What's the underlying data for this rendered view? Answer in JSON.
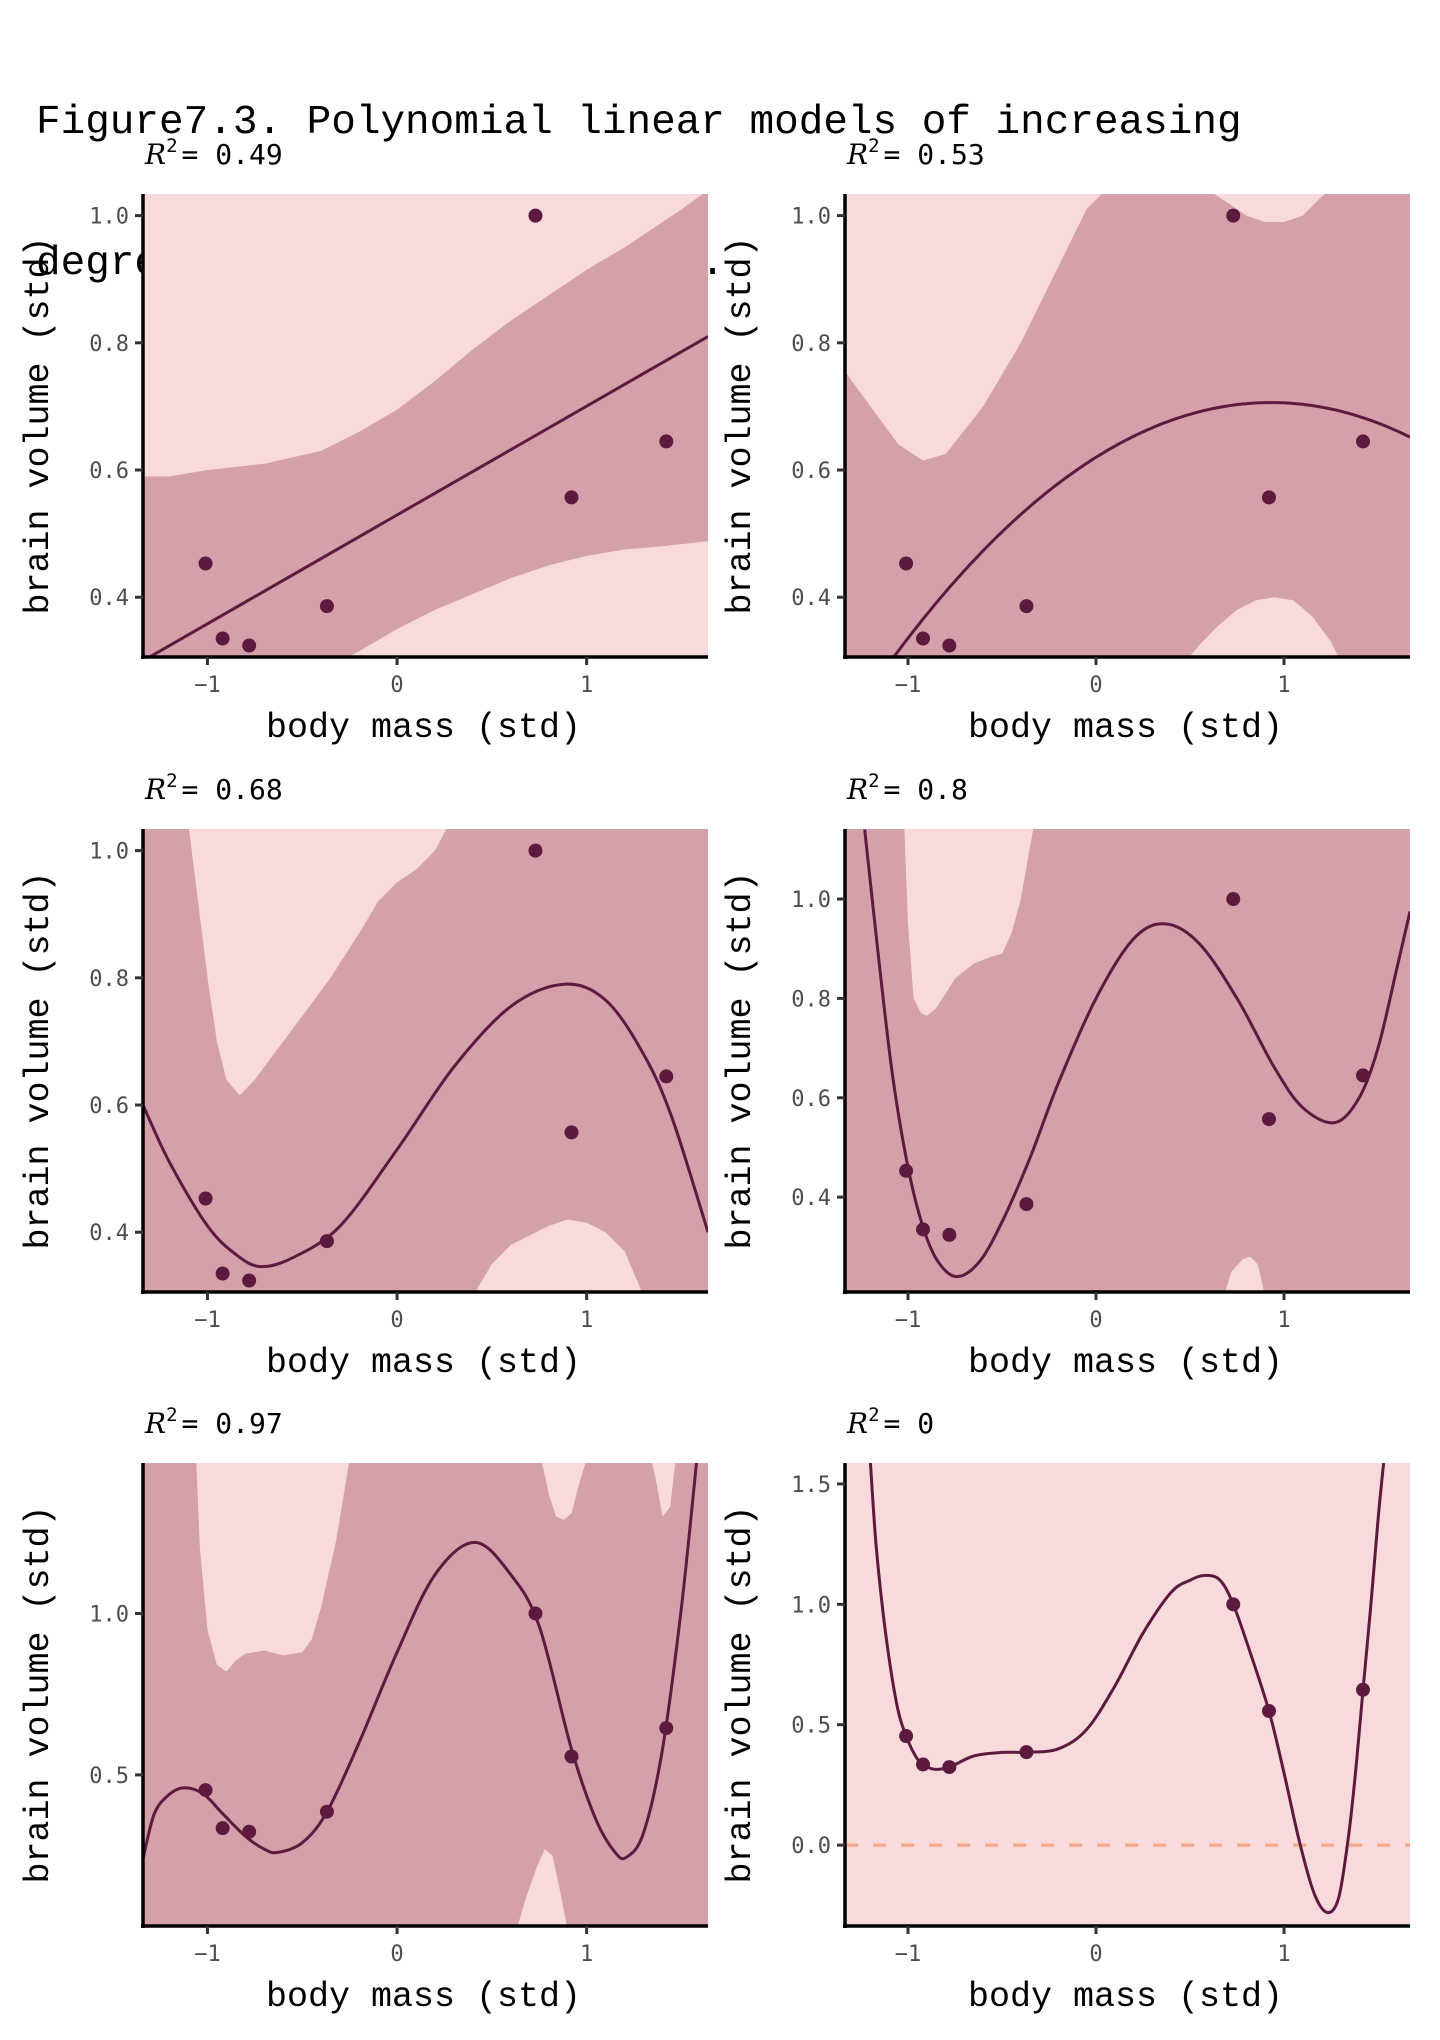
{
  "figure": {
    "title_line1": "Figure7.3. Polynomial linear models of increasing",
    "title_line2": "degree for the hominin data."
  },
  "colors": {
    "point": "#5e1a3e",
    "line": "#5e1a3e",
    "band_outer": "#f8dadc",
    "band_inner": "#d4a0aa",
    "reference_line": "#f4a582",
    "axis": "#000000"
  },
  "chart_data": [
    {
      "type": "line",
      "panel": "top-left",
      "title": "R² = 0.49",
      "r2_label": "0.49",
      "degree": 1,
      "xlabel": "body mass (std)",
      "ylabel": "brain volume (std)",
      "xlim": [
        -1.34,
        1.64
      ],
      "ylim": [
        0.306,
        1.034
      ],
      "xticks": [
        -1,
        0,
        1
      ],
      "xtick_labels": [
        "−1",
        "0",
        "1"
      ],
      "yticks": [
        0.4,
        0.6,
        0.8,
        1.0
      ],
      "ytick_labels": [
        "0.4",
        "0.6",
        "0.8",
        "1.0"
      ],
      "grid": false,
      "points": {
        "x": [
          -0.78,
          -0.92,
          -1.01,
          -0.37,
          0.92,
          1.42,
          0.73
        ],
        "y": [
          0.324,
          0.335,
          0.453,
          0.386,
          0.557,
          0.645,
          1.0
        ]
      },
      "fit": {
        "x": [
          -1.34,
          1.64
        ],
        "y": [
          0.3,
          0.81
        ]
      },
      "band_upper": {
        "x": [
          -1.34,
          -1.2,
          -1.0,
          -0.7,
          -0.4,
          -0.2,
          0.0,
          0.2,
          0.4,
          0.6,
          0.8,
          1.0,
          1.2,
          1.4,
          1.5,
          1.64
        ],
        "y": [
          0.59,
          0.59,
          0.6,
          0.61,
          0.63,
          0.66,
          0.695,
          0.74,
          0.79,
          0.835,
          0.875,
          0.915,
          0.95,
          0.99,
          1.01,
          1.04
        ]
      },
      "band_lower": {
        "x": [
          -1.34,
          -0.3,
          -0.2,
          0.0,
          0.2,
          0.4,
          0.6,
          0.8,
          1.0,
          1.2,
          1.4,
          1.64
        ],
        "y": [
          0.3,
          0.3,
          0.315,
          0.35,
          0.38,
          0.405,
          0.43,
          0.45,
          0.465,
          0.475,
          0.48,
          0.488
        ]
      }
    },
    {
      "type": "line",
      "panel": "top-right",
      "title": "R² = 0.53",
      "r2_label": "0.53",
      "degree": 2,
      "xlabel": "body mass (std)",
      "ylabel": "brain volume (std)",
      "xlim": [
        -1.335,
        1.67
      ],
      "ylim": [
        0.306,
        1.034
      ],
      "xticks": [
        -1,
        0,
        1
      ],
      "xtick_labels": [
        "−1",
        "0",
        "1"
      ],
      "yticks": [
        0.4,
        0.6,
        0.8,
        1.0
      ],
      "ytick_labels": [
        "0.4",
        "0.6",
        "0.8",
        "1.0"
      ],
      "grid": false,
      "points": {
        "x": [
          -0.78,
          -0.92,
          -1.01,
          -0.37,
          0.92,
          1.42,
          0.73
        ],
        "y": [
          0.324,
          0.335,
          0.453,
          0.386,
          0.557,
          0.645,
          1.0
        ]
      },
      "fit_poly": [
        0.62,
        0.185,
        -0.0994
      ],
      "band_upper": {
        "x": [
          -1.335,
          -1.2,
          -1.05,
          -0.92,
          -0.8,
          -0.6,
          -0.4,
          -0.2,
          -0.05,
          0.05,
          0.6,
          0.7,
          0.8,
          0.9,
          1.0,
          1.1,
          1.2,
          1.25,
          1.67
        ],
        "y": [
          0.755,
          0.7,
          0.64,
          0.615,
          0.625,
          0.7,
          0.8,
          0.92,
          1.01,
          1.04,
          1.04,
          1.02,
          1.0,
          0.99,
          0.99,
          1.0,
          1.03,
          1.04,
          1.04
        ]
      },
      "band_lower": {
        "x": [
          -1.335,
          0.48,
          0.55,
          0.65,
          0.75,
          0.85,
          0.95,
          1.05,
          1.15,
          1.25,
          1.3,
          1.67
        ],
        "y": [
          0.3,
          0.3,
          0.325,
          0.355,
          0.38,
          0.395,
          0.4,
          0.395,
          0.37,
          0.33,
          0.3,
          0.3
        ]
      }
    },
    {
      "type": "line",
      "panel": "middle-left",
      "title": "R² = 0.68",
      "r2_label": "0.68",
      "degree": 3,
      "xlabel": "body mass (std)",
      "ylabel": "brain volume (std)",
      "xlim": [
        -1.34,
        1.64
      ],
      "ylim": [
        0.306,
        1.034
      ],
      "xticks": [
        -1,
        0,
        1
      ],
      "xtick_labels": [
        "−1",
        "0",
        "1"
      ],
      "yticks": [
        0.4,
        0.6,
        0.8,
        1.0
      ],
      "ytick_labels": [
        "0.4",
        "0.6",
        "0.8",
        "1.0"
      ],
      "grid": false,
      "points": {
        "x": [
          -0.78,
          -0.92,
          -1.01,
          -0.37,
          0.92,
          1.42,
          0.73
        ],
        "y": [
          0.324,
          0.335,
          0.453,
          0.386,
          0.557,
          0.645,
          1.0
        ]
      },
      "fit": {
        "x": [
          -1.34,
          -1.2,
          -1.0,
          -0.85,
          -0.72,
          -0.55,
          -0.3,
          0.0,
          0.3,
          0.6,
          0.88,
          1.1,
          1.3,
          1.45,
          1.64
        ],
        "y": [
          0.6,
          0.51,
          0.41,
          0.365,
          0.346,
          0.36,
          0.41,
          0.53,
          0.66,
          0.755,
          0.79,
          0.765,
          0.68,
          0.58,
          0.4
        ]
      },
      "band_upper": {
        "x": [
          -1.34,
          -1.1,
          -1.05,
          -1.0,
          -0.95,
          -0.9,
          -0.83,
          -0.75,
          -0.65,
          -0.5,
          -0.35,
          -0.2,
          -0.1,
          0.0,
          0.1,
          0.2,
          0.27,
          1.64
        ],
        "y": [
          1.04,
          1.04,
          0.92,
          0.8,
          0.7,
          0.64,
          0.615,
          0.64,
          0.68,
          0.74,
          0.8,
          0.87,
          0.92,
          0.95,
          0.97,
          1.0,
          1.04,
          1.04
        ]
      },
      "band_lower": {
        "x": [
          -1.34,
          0.4,
          0.5,
          0.6,
          0.7,
          0.8,
          0.9,
          1.0,
          1.1,
          1.2,
          1.3,
          1.64
        ],
        "y": [
          0.3,
          0.3,
          0.35,
          0.38,
          0.395,
          0.41,
          0.42,
          0.415,
          0.4,
          0.37,
          0.3,
          0.3
        ]
      }
    },
    {
      "type": "line",
      "panel": "middle-right",
      "title": "R² = 0.8",
      "r2_label": "0.8",
      "degree": 4,
      "xlabel": "body mass (std)",
      "ylabel": "brain volume (std)",
      "xlim": [
        -1.335,
        1.67
      ],
      "ylim": [
        0.209,
        1.141
      ],
      "xticks": [
        -1,
        0,
        1
      ],
      "xtick_labels": [
        "−1",
        "0",
        "1"
      ],
      "yticks": [
        0.4,
        0.6,
        0.8,
        1.0
      ],
      "ytick_labels": [
        "0.4",
        "0.6",
        "0.8",
        "1.0"
      ],
      "grid": false,
      "points": {
        "x": [
          -0.78,
          -0.92,
          -1.01,
          -0.37,
          0.92,
          1.42,
          0.73
        ],
        "y": [
          0.324,
          0.335,
          0.453,
          0.386,
          0.557,
          0.645,
          1.0
        ]
      },
      "fit": {
        "x": [
          -1.23,
          -1.15,
          -1.08,
          -1.0,
          -0.92,
          -0.84,
          -0.74,
          -0.62,
          -0.5,
          -0.35,
          -0.2,
          0.0,
          0.2,
          0.37,
          0.55,
          0.75,
          0.95,
          1.1,
          1.27,
          1.4,
          1.5,
          1.6,
          1.67
        ],
        "y": [
          1.14,
          0.86,
          0.64,
          0.46,
          0.34,
          0.27,
          0.24,
          0.27,
          0.35,
          0.48,
          0.63,
          0.8,
          0.92,
          0.95,
          0.91,
          0.8,
          0.66,
          0.58,
          0.55,
          0.6,
          0.7,
          0.86,
          0.975
        ]
      },
      "band_upper": {
        "x": [
          -1.335,
          -1.02,
          -1.0,
          -0.97,
          -0.93,
          -0.9,
          -0.85,
          -0.75,
          -0.65,
          -0.55,
          -0.5,
          -0.45,
          -0.4,
          -0.33,
          1.67
        ],
        "y": [
          1.15,
          1.15,
          0.95,
          0.8,
          0.77,
          0.765,
          0.78,
          0.84,
          0.87,
          0.885,
          0.89,
          0.93,
          1.0,
          1.15,
          1.15
        ]
      },
      "band_lower": {
        "x": [
          -1.335,
          0.68,
          0.72,
          0.78,
          0.82,
          0.86,
          0.9,
          1.67
        ],
        "y": [
          0.2,
          0.2,
          0.25,
          0.275,
          0.28,
          0.265,
          0.2,
          0.2
        ]
      }
    },
    {
      "type": "line",
      "panel": "bottom-left",
      "title": "R² = 0.97",
      "r2_label": "0.97",
      "degree": 5,
      "xlabel": "body mass (std)",
      "ylabel": "brain volume (std)",
      "xlim": [
        -1.34,
        1.64
      ],
      "ylim": [
        0.032,
        1.466
      ],
      "xticks": [
        -1,
        0,
        1
      ],
      "xtick_labels": [
        "−1",
        "0",
        "1"
      ],
      "yticks": [
        0.5,
        1.0
      ],
      "ytick_labels": [
        "0.5",
        "1.0"
      ],
      "grid": false,
      "points": {
        "x": [
          -0.78,
          -0.92,
          -1.01,
          -0.37,
          0.92,
          1.42,
          0.73
        ],
        "y": [
          0.324,
          0.335,
          0.453,
          0.386,
          0.557,
          0.645,
          1.0
        ]
      },
      "fit": {
        "x": [
          -1.34,
          -1.28,
          -1.2,
          -1.12,
          -1.02,
          -0.92,
          -0.8,
          -0.7,
          -0.63,
          -0.5,
          -0.37,
          -0.2,
          0.0,
          0.2,
          0.41,
          0.6,
          0.75,
          0.92,
          1.05,
          1.15,
          1.21,
          1.3,
          1.4,
          1.5,
          1.58
        ],
        "y": [
          0.24,
          0.38,
          0.44,
          0.46,
          0.44,
          0.38,
          0.31,
          0.27,
          0.26,
          0.29,
          0.385,
          0.6,
          0.88,
          1.12,
          1.22,
          1.12,
          0.96,
          0.58,
          0.36,
          0.26,
          0.245,
          0.32,
          0.58,
          1.02,
          1.47
        ]
      },
      "band_upper": {
        "x": [
          -1.34,
          -1.06,
          -1.04,
          -1.0,
          -0.95,
          -0.9,
          -0.85,
          -0.8,
          -0.7,
          -0.6,
          -0.5,
          -0.45,
          -0.4,
          -0.32,
          -0.25,
          0.76,
          0.8,
          0.84,
          0.88,
          0.92,
          0.96,
          1.0,
          1.34,
          1.37,
          1.4,
          1.44,
          1.47,
          1.64
        ],
        "y": [
          1.48,
          1.48,
          1.2,
          0.95,
          0.84,
          0.82,
          0.855,
          0.875,
          0.885,
          0.87,
          0.88,
          0.92,
          1.02,
          1.23,
          1.48,
          1.48,
          1.37,
          1.3,
          1.29,
          1.31,
          1.4,
          1.48,
          1.48,
          1.4,
          1.3,
          1.33,
          1.48,
          1.48
        ]
      },
      "band_lower": {
        "x": [
          -1.34,
          0.63,
          0.68,
          0.74,
          0.78,
          0.82,
          0.86,
          0.9,
          1.64
        ],
        "y": [
          0.02,
          0.02,
          0.12,
          0.22,
          0.27,
          0.25,
          0.14,
          0.02,
          0.02
        ]
      }
    },
    {
      "type": "line",
      "panel": "bottom-right",
      "title": "R² = 0",
      "r2_label": "0",
      "degree": 6,
      "xlabel": "body mass (std)",
      "ylabel": "brain volume (std)",
      "xlim": [
        -1.335,
        1.67
      ],
      "ylim": [
        -0.336,
        1.587
      ],
      "xticks": [
        -1,
        0,
        1
      ],
      "xtick_labels": [
        "−1",
        "0",
        "1"
      ],
      "yticks": [
        0.0,
        0.5,
        1.0,
        1.5
      ],
      "ytick_labels": [
        "0.0",
        "0.5",
        "1.0",
        "1.5"
      ],
      "grid": false,
      "reference_line_y": 0.0,
      "points": {
        "x": [
          -0.78,
          -0.92,
          -1.01,
          -0.37,
          0.92,
          1.42,
          0.73
        ],
        "y": [
          0.324,
          0.335,
          0.453,
          0.386,
          0.557,
          0.645,
          1.0
        ]
      },
      "fit": {
        "x": [
          -1.2,
          -1.17,
          -1.13,
          -1.09,
          -1.05,
          -1.01,
          -0.96,
          -0.92,
          -0.86,
          -0.78,
          -0.65,
          -0.5,
          -0.37,
          -0.2,
          -0.05,
          0.1,
          0.25,
          0.4,
          0.5,
          0.58,
          0.66,
          0.73,
          0.82,
          0.92,
          1.0,
          1.08,
          1.16,
          1.23,
          1.29,
          1.34,
          1.38,
          1.42,
          1.46,
          1.5,
          1.53
        ],
        "y": [
          1.59,
          1.25,
          0.95,
          0.72,
          0.55,
          0.453,
          0.37,
          0.335,
          0.315,
          0.324,
          0.37,
          0.385,
          0.386,
          0.4,
          0.48,
          0.66,
          0.88,
          1.05,
          1.1,
          1.12,
          1.1,
          1.0,
          0.8,
          0.557,
          0.3,
          0.02,
          -0.2,
          -0.28,
          -0.22,
          0.02,
          0.3,
          0.645,
          0.98,
          1.35,
          1.59
        ]
      }
    }
  ]
}
